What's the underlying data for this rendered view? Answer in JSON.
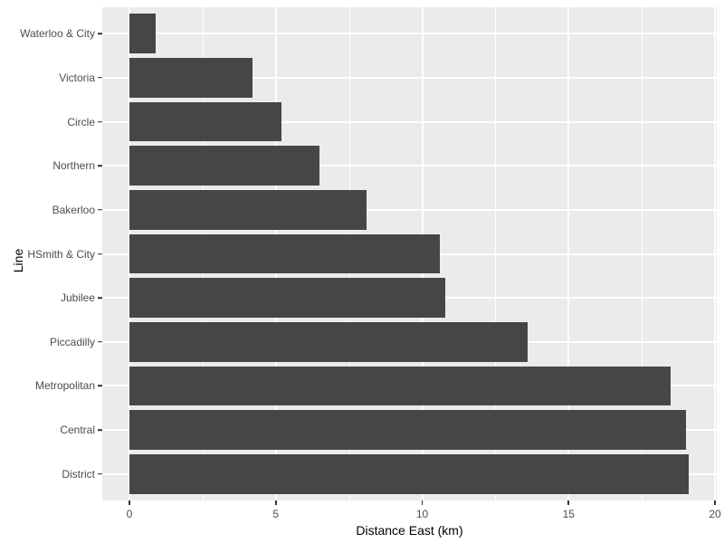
{
  "chart_data": {
    "type": "bar",
    "orientation": "horizontal",
    "title": "",
    "xlabel": "Distance East (km)",
    "ylabel": "Line",
    "categories_top_to_bottom": [
      "Waterloo & City",
      "Victoria",
      "Circle",
      "Northern",
      "Bakerloo",
      "HSmith & City",
      "Jubilee",
      "Piccadilly",
      "Metropolitan",
      "Central",
      "District"
    ],
    "series": [
      {
        "name": "Distance East (km)",
        "values": [
          0.9,
          4.2,
          5.2,
          6.5,
          8.1,
          10.6,
          10.8,
          13.6,
          18.5,
          19.0,
          19.1
        ]
      }
    ],
    "xlim": [
      0,
      20
    ],
    "x_major_ticks": [
      0,
      5,
      10,
      15,
      20
    ],
    "x_major_tick_labels": [
      "0",
      "5",
      "10",
      "15",
      "20"
    ],
    "x_minor_ticks": [
      2.5,
      7.5,
      12.5,
      17.5
    ],
    "grid": "on",
    "legend": "none",
    "style": "ggplot2",
    "colors": {
      "bar_fill": "#464646",
      "panel_background": "#EBEBEB",
      "gridline": "#FFFFFF",
      "tick_label": "#4D4D4D",
      "axis_title": "#000000",
      "tick_mark": "#333333",
      "figure_background": "#FFFFFF"
    }
  }
}
